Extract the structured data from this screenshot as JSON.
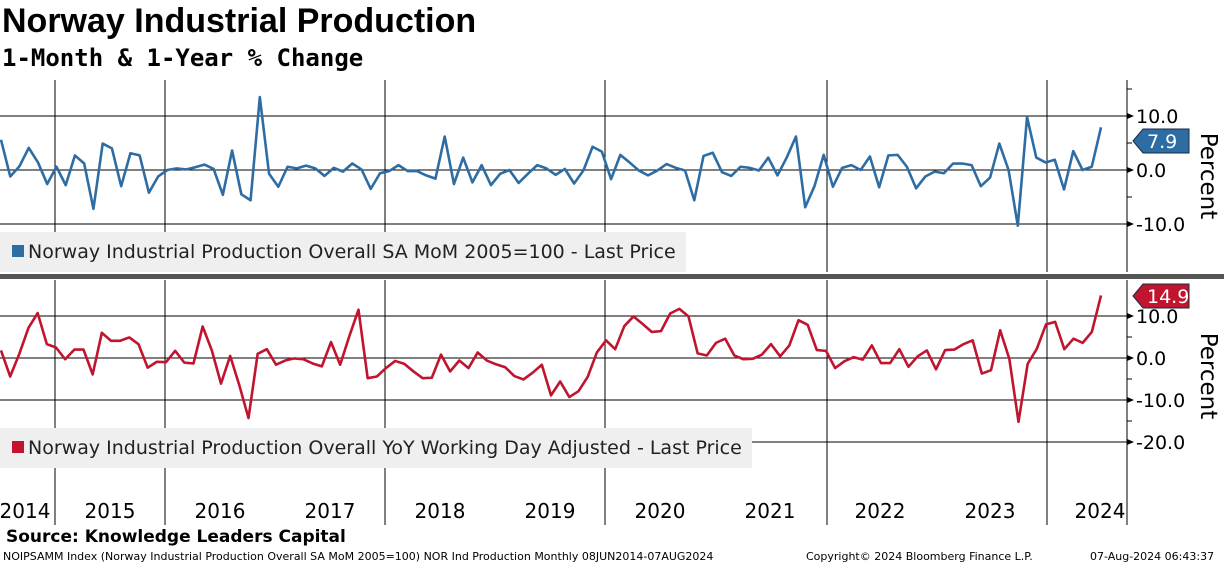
{
  "header": {
    "title": "Norway Industrial Production",
    "subtitle": "1-Month & 1-Year % Change"
  },
  "colors": {
    "mom": "#2e6da4",
    "yoy": "#c0142f"
  },
  "chart_data": [
    {
      "type": "line",
      "name": "Norway Industrial Production Overall SA MoM 2005=100 - Last Price",
      "legend": "Norway Industrial Production Overall SA MoM 2005=100 - Last Price",
      "ylabel": "Percent",
      "ylim": [
        -13,
        15
      ],
      "yticks": [
        "10.0",
        "0.0",
        "-10.0"
      ],
      "last_value": "7.9",
      "x_start": "2014-07",
      "x_end": "2024-06",
      "frequency": "monthly",
      "values": [
        5.6,
        -1.2,
        0.7,
        4.1,
        1.4,
        -2.6,
        0.6,
        -2.8,
        2.7,
        1.2,
        -7.2,
        4.9,
        4.0,
        -3.0,
        3.1,
        2.7,
        -4.2,
        -1.2,
        0,
        0.3,
        0.1,
        0.5,
        1.0,
        0.2,
        -4.6,
        3.6,
        -4.5,
        -5.6,
        13.5,
        -0.7,
        -3.1,
        0.6,
        0.3,
        0.8,
        0.3,
        -1.1,
        0.4,
        -0.3,
        1.2,
        0.1,
        -3.5,
        -0.6,
        -0.2,
        0.9,
        -0.2,
        -0.2,
        -1.0,
        -1.6,
        6.2,
        -2.6,
        2.3,
        -2.3,
        0.9,
        -2.8,
        -0.7,
        0,
        -2.4,
        -0.7,
        0.9,
        0.3,
        -0.9,
        0.2,
        -2.5,
        -0.1,
        4.3,
        3.4,
        -1.7,
        2.8,
        1.4,
        -0.1,
        -1.0,
        -0.1,
        1.1,
        0.4,
        -0.1,
        -5.6,
        2.6,
        3.2,
        -0.4,
        -1.1,
        0.6,
        0.4,
        -0.1,
        2.3,
        -1.0,
        2.3,
        6.2,
        -6.9,
        -3.0,
        2.8,
        -3.1,
        0.4,
        0.9,
        0,
        2.5,
        -3.2,
        2.7,
        2.8,
        0.6,
        -3.4,
        -1.2,
        -0.3,
        -0.6,
        1.2,
        1.2,
        0.9,
        -3.0,
        -1.4,
        4.9,
        0,
        -10.3,
        9.8,
        2.3,
        1.4,
        1.9,
        -3.6,
        3.5,
        0,
        0.6,
        7.9
      ]
    },
    {
      "type": "line",
      "name": "Norway Industrial Production Overall YoY Working Day Adjusted - Last Price",
      "legend": "Norway Industrial Production Overall YoY Working Day Adjusted - Last Price",
      "ylabel": "Percent",
      "ylim": [
        -27,
        20
      ],
      "yticks": [
        "10.0",
        "0.0",
        "-10.0",
        "-20.0"
      ],
      "last_value": "14.9",
      "x_start": "2014-07",
      "x_end": "2024-06",
      "frequency": "monthly",
      "values": [
        1.8,
        -4.4,
        1.0,
        7.2,
        10.7,
        3.3,
        2.5,
        -0.3,
        2.0,
        2.0,
        -3.9,
        6.0,
        4.1,
        4.1,
        4.9,
        3.3,
        -2.3,
        -0.9,
        -1.0,
        1.7,
        -1.1,
        -1.3,
        7.5,
        1.8,
        -6.1,
        0.5,
        -6.5,
        -14.3,
        1.0,
        2.1,
        -1.6,
        -0.6,
        -0.1,
        -0.3,
        -1.3,
        -2.0,
        3.8,
        -1.6,
        5.2,
        11.5,
        -4.8,
        -4.4,
        -2.4,
        -0.7,
        -1.4,
        -3.2,
        -4.8,
        -4.7,
        0.8,
        -3.2,
        -0.6,
        -2.4,
        1.3,
        -0.6,
        -1.5,
        -2.2,
        -4.3,
        -5.1,
        -3.5,
        -1.6,
        -8.9,
        -5.6,
        -9.3,
        -7.9,
        -4.5,
        1.3,
        4.2,
        2.1,
        7.6,
        9.9,
        8.1,
        6.2,
        6.4,
        10.6,
        11.7,
        9.9,
        1.1,
        0.6,
        3.6,
        4.6,
        0.6,
        -0.3,
        -0.2,
        0.8,
        3.3,
        0.4,
        3.0,
        9.0,
        7.9,
        1.9,
        1.7,
        -2.4,
        -0.8,
        0.2,
        -0.4,
        3.0,
        -1.2,
        -1.2,
        2.1,
        -2.1,
        0.4,
        1.8,
        -2.7,
        1.9,
        2.0,
        3.3,
        4.2,
        -3.7,
        -2.9,
        6.6,
        -0.2,
        -15.2,
        -1.4,
        2.2,
        8.0,
        8.6,
        2.1,
        4.6,
        3.6,
        6.2,
        14.9
      ]
    }
  ],
  "x_axis": {
    "years": [
      "2014",
      "2015",
      "2016",
      "2017",
      "2018",
      "2019",
      "2020",
      "2021",
      "2022",
      "2023",
      "2024"
    ]
  },
  "footer": {
    "source": "Source: Knowledge Leaders Capital",
    "description": "NOIPSAMM Index (Norway Industrial Production Overall SA MoM 2005=100) NOR Ind Production  Monthly 08JUN2014-07AUG2024",
    "copyright": "Copyright© 2024 Bloomberg Finance L.P.",
    "timestamp": "07-Aug-2024 06:43:37"
  }
}
